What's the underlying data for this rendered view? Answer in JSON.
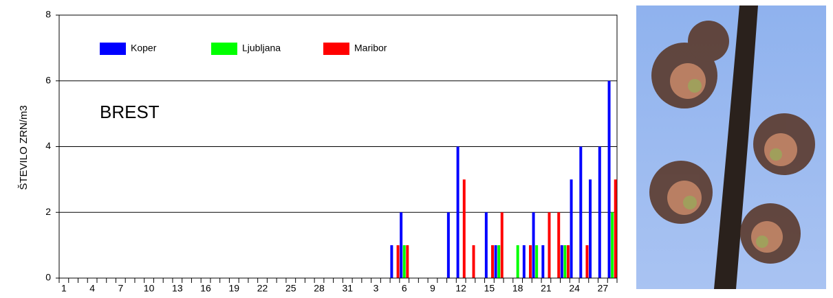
{
  "chart_data": {
    "type": "bar",
    "y_label": "ŠTEVILO ZRN/m3",
    "annotation": "BREST",
    "categories": [
      "1",
      null,
      null,
      "4",
      null,
      null,
      "7",
      null,
      null,
      "10",
      null,
      null,
      "13",
      null,
      null,
      "16",
      null,
      null,
      "19",
      null,
      null,
      "22",
      null,
      null,
      "25",
      null,
      null,
      "28",
      null,
      null,
      "31",
      null,
      null,
      "3",
      null,
      null,
      "6",
      null,
      null,
      "9",
      null,
      null,
      "12",
      null,
      null,
      "15",
      null,
      null,
      "18",
      null,
      null,
      "21",
      null,
      null,
      "24",
      null,
      null,
      "27",
      null
    ],
    "series": [
      {
        "name": "Koper",
        "color": "#0000ff",
        "values": [
          0,
          0,
          0,
          0,
          0,
          0,
          0,
          0,
          0,
          0,
          0,
          0,
          0,
          0,
          0,
          0,
          0,
          0,
          0,
          0,
          0,
          0,
          0,
          0,
          0,
          0,
          0,
          0,
          0,
          0,
          0,
          0,
          0,
          0,
          0,
          1,
          2,
          0,
          0,
          0,
          0,
          2,
          4,
          0,
          0,
          2,
          1,
          0,
          0,
          1,
          2,
          1,
          0,
          1,
          3,
          4,
          3,
          4,
          6
        ]
      },
      {
        "name": "Ljubljana",
        "color": "#00ff00",
        "values": [
          0,
          0,
          0,
          0,
          0,
          0,
          0,
          0,
          0,
          0,
          0,
          0,
          0,
          0,
          0,
          0,
          0,
          0,
          0,
          0,
          0,
          0,
          0,
          0,
          0,
          0,
          0,
          0,
          0,
          0,
          0,
          0,
          0,
          0,
          0,
          0,
          1,
          0,
          0,
          0,
          0,
          0,
          0,
          0,
          0,
          0,
          1,
          0,
          1,
          0,
          1,
          0,
          0,
          1,
          0,
          0,
          0,
          0,
          2
        ]
      },
      {
        "name": "Maribor",
        "color": "#ff0000",
        "values": [
          0,
          0,
          0,
          0,
          0,
          0,
          0,
          0,
          0,
          0,
          0,
          0,
          0,
          0,
          0,
          0,
          0,
          0,
          0,
          0,
          0,
          0,
          0,
          0,
          0,
          0,
          0,
          0,
          0,
          0,
          0,
          0,
          0,
          0,
          0,
          1,
          1,
          0,
          0,
          0,
          0,
          0,
          3,
          1,
          0,
          1,
          2,
          0,
          0,
          1,
          0,
          2,
          2,
          1,
          0,
          1,
          0,
          0,
          3
        ]
      }
    ],
    "ylim": [
      0,
      8
    ],
    "yticks": [
      0,
      2,
      4,
      6,
      8
    ],
    "grid": true,
    "legend": "top"
  }
}
